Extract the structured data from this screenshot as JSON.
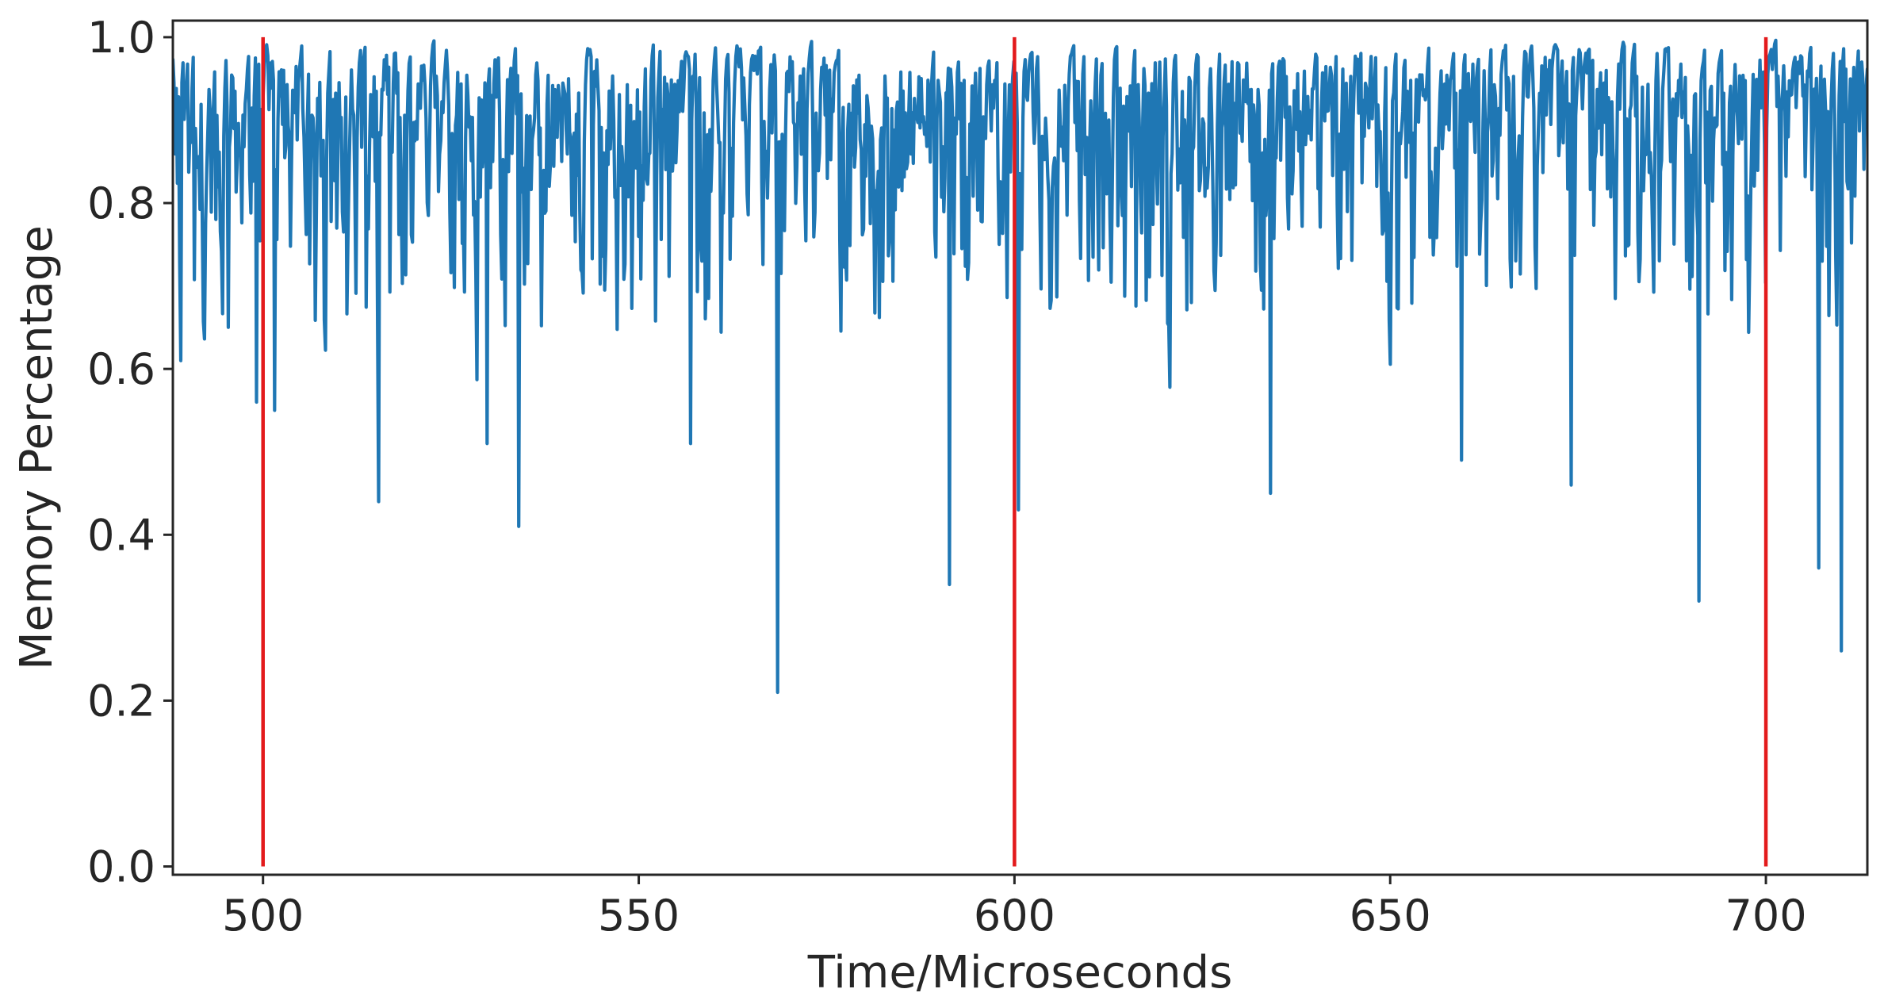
{
  "chart_data": {
    "type": "line",
    "title": "",
    "xlabel": "Time/Microseconds",
    "ylabel": "Memory Percentage",
    "xlim": [
      488,
      713.5
    ],
    "ylim": [
      -0.01,
      1.02
    ],
    "x_ticks": [
      500,
      550,
      600,
      650,
      700
    ],
    "x_tick_labels": [
      "500",
      "550",
      "600",
      "650",
      "700"
    ],
    "y_ticks": [
      0.0,
      0.2,
      0.4,
      0.6,
      0.8,
      1.0
    ],
    "y_tick_labels": [
      "0.0",
      "0.2",
      "0.4",
      "0.6",
      "0.8",
      "1.0"
    ],
    "grid": false,
    "legend": "none",
    "series": [
      {
        "color": "#1f77b4",
        "x_start": 488,
        "x_end": 713.5,
        "samples": 1500,
        "y_max": 1.0,
        "notable_minima": [
          {
            "x": 489.0,
            "y": 0.61
          },
          {
            "x": 499.2,
            "y": 0.56
          },
          {
            "x": 501.6,
            "y": 0.55
          },
          {
            "x": 515.4,
            "y": 0.44
          },
          {
            "x": 529.8,
            "y": 0.51
          },
          {
            "x": 534.1,
            "y": 0.41
          },
          {
            "x": 556.9,
            "y": 0.51
          },
          {
            "x": 568.5,
            "y": 0.21
          },
          {
            "x": 591.3,
            "y": 0.34
          },
          {
            "x": 600.5,
            "y": 0.43
          },
          {
            "x": 634.0,
            "y": 0.45
          },
          {
            "x": 659.5,
            "y": 0.49
          },
          {
            "x": 674.1,
            "y": 0.46
          },
          {
            "x": 691.1,
            "y": 0.32
          },
          {
            "x": 707.1,
            "y": 0.36
          },
          {
            "x": 710.0,
            "y": 0.26
          }
        ]
      }
    ],
    "vertical_lines": [
      {
        "x": 500,
        "y_range": [
          0.0,
          1.0
        ],
        "color": "#e31a1c"
      },
      {
        "x": 600,
        "y_range": [
          0.0,
          1.0
        ],
        "color": "#e31a1c"
      },
      {
        "x": 700,
        "y_range": [
          0.0,
          1.0
        ],
        "color": "#e31a1c"
      }
    ]
  }
}
